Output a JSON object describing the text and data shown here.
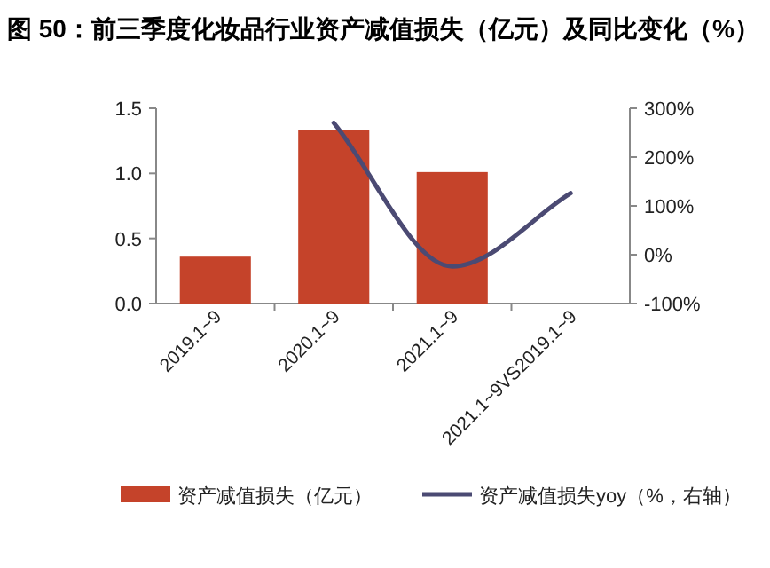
{
  "chart_data": {
    "type": "bar",
    "title": "图 50：前三季度化妆品行业资产减值损失（亿元）及同比变化（%）",
    "categories": [
      "2019.1~9",
      "2020.1~9",
      "2021.1~9",
      "2021.1~9VS2019.1~9"
    ],
    "series": [
      {
        "name": "资产减值损失（亿元）",
        "color": "#c5432a",
        "values": [
          0.36,
          1.33,
          1.01,
          null
        ]
      },
      {
        "name": "资产减值损失yoy（%，右轴）",
        "type": "line",
        "axis": "y2",
        "color": "#4b4a73",
        "values": [
          null,
          270,
          -24,
          126
        ]
      }
    ],
    "ylim": [
      0,
      1.5
    ],
    "yticks": [
      {
        "value": 0,
        "label": "0.0"
      },
      {
        "value": 0.5,
        "label": "0.5"
      },
      {
        "value": 1,
        "label": "1.0"
      },
      {
        "value": 1.5,
        "label": "1.5"
      }
    ],
    "y2lim": [
      -100,
      300
    ],
    "y2ticks": [
      {
        "value": -100,
        "label": "-100%"
      },
      {
        "value": 0,
        "label": "0%"
      },
      {
        "value": 100,
        "label": "100%"
      },
      {
        "value": 200,
        "label": "200%"
      },
      {
        "value": 300,
        "label": "300%"
      }
    ],
    "legend": "bottom",
    "grid": false
  }
}
